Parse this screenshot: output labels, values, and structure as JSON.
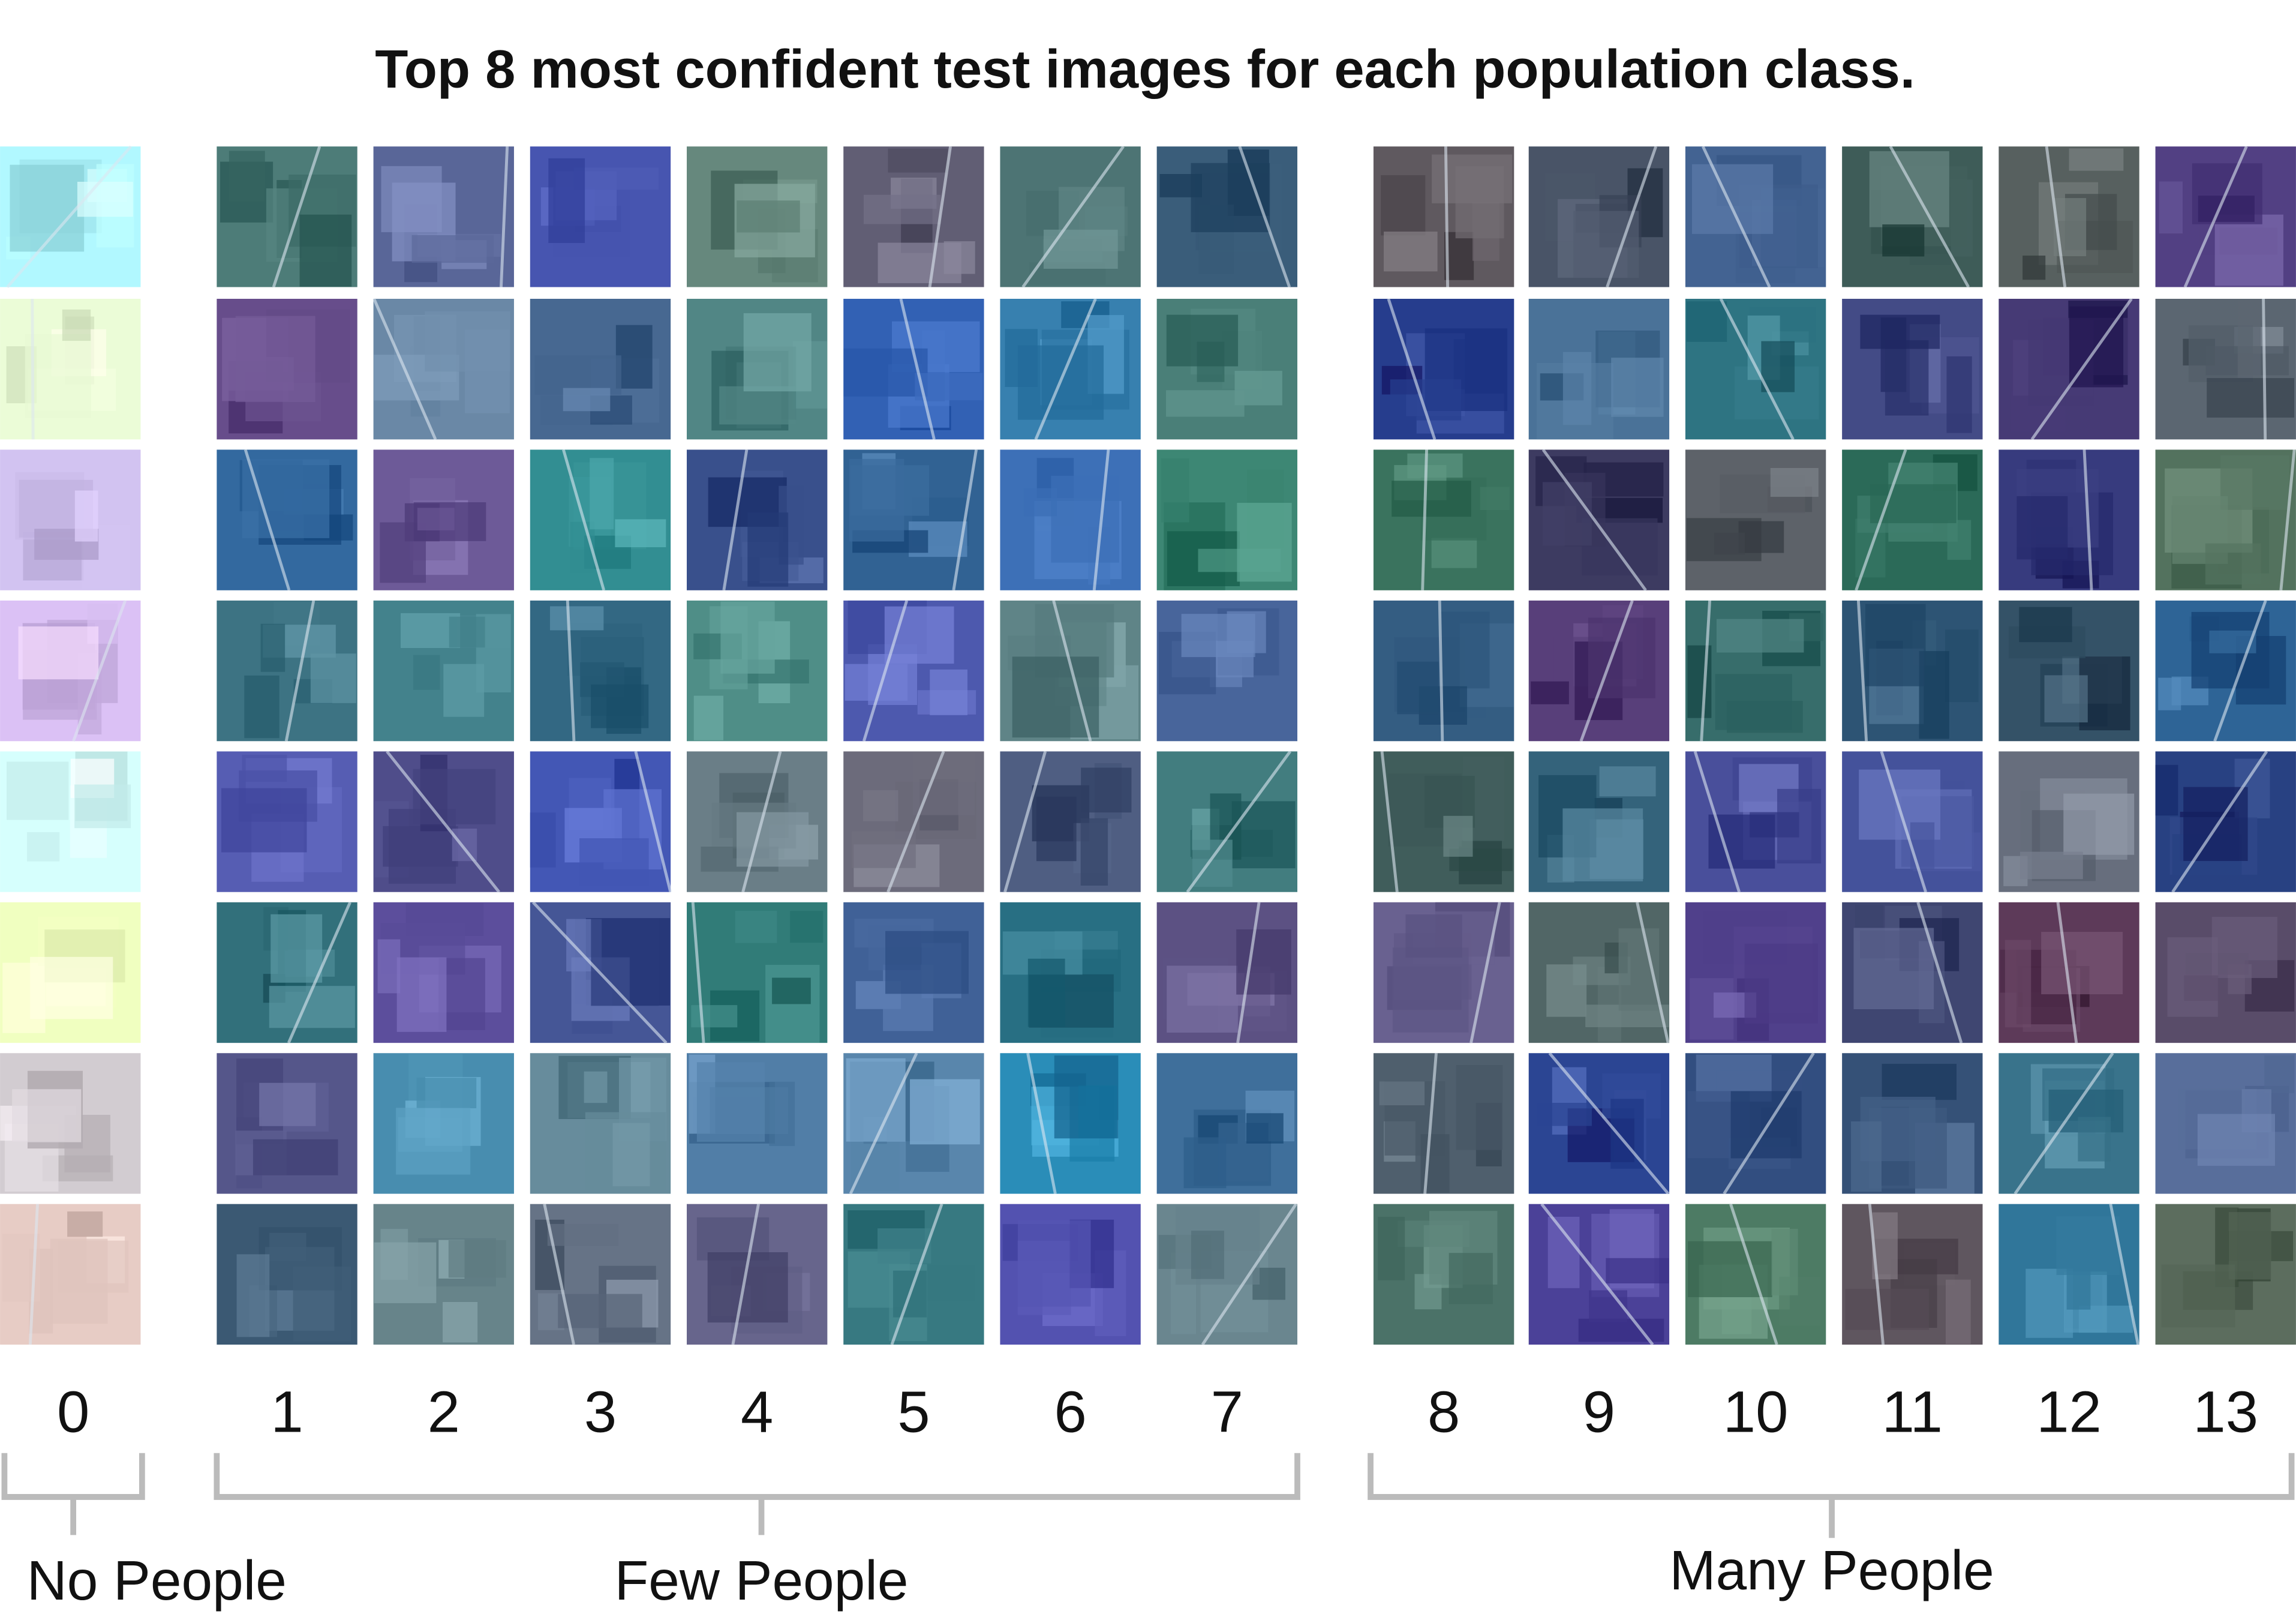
{
  "title": "Top 8 most confident test images for each population class.",
  "columns": [
    "0",
    "1",
    "2",
    "3",
    "4",
    "5",
    "6",
    "7",
    "8",
    "9",
    "10",
    "11",
    "12",
    "13"
  ],
  "groups": [
    "No People",
    "Few People",
    "Many People"
  ]
}
